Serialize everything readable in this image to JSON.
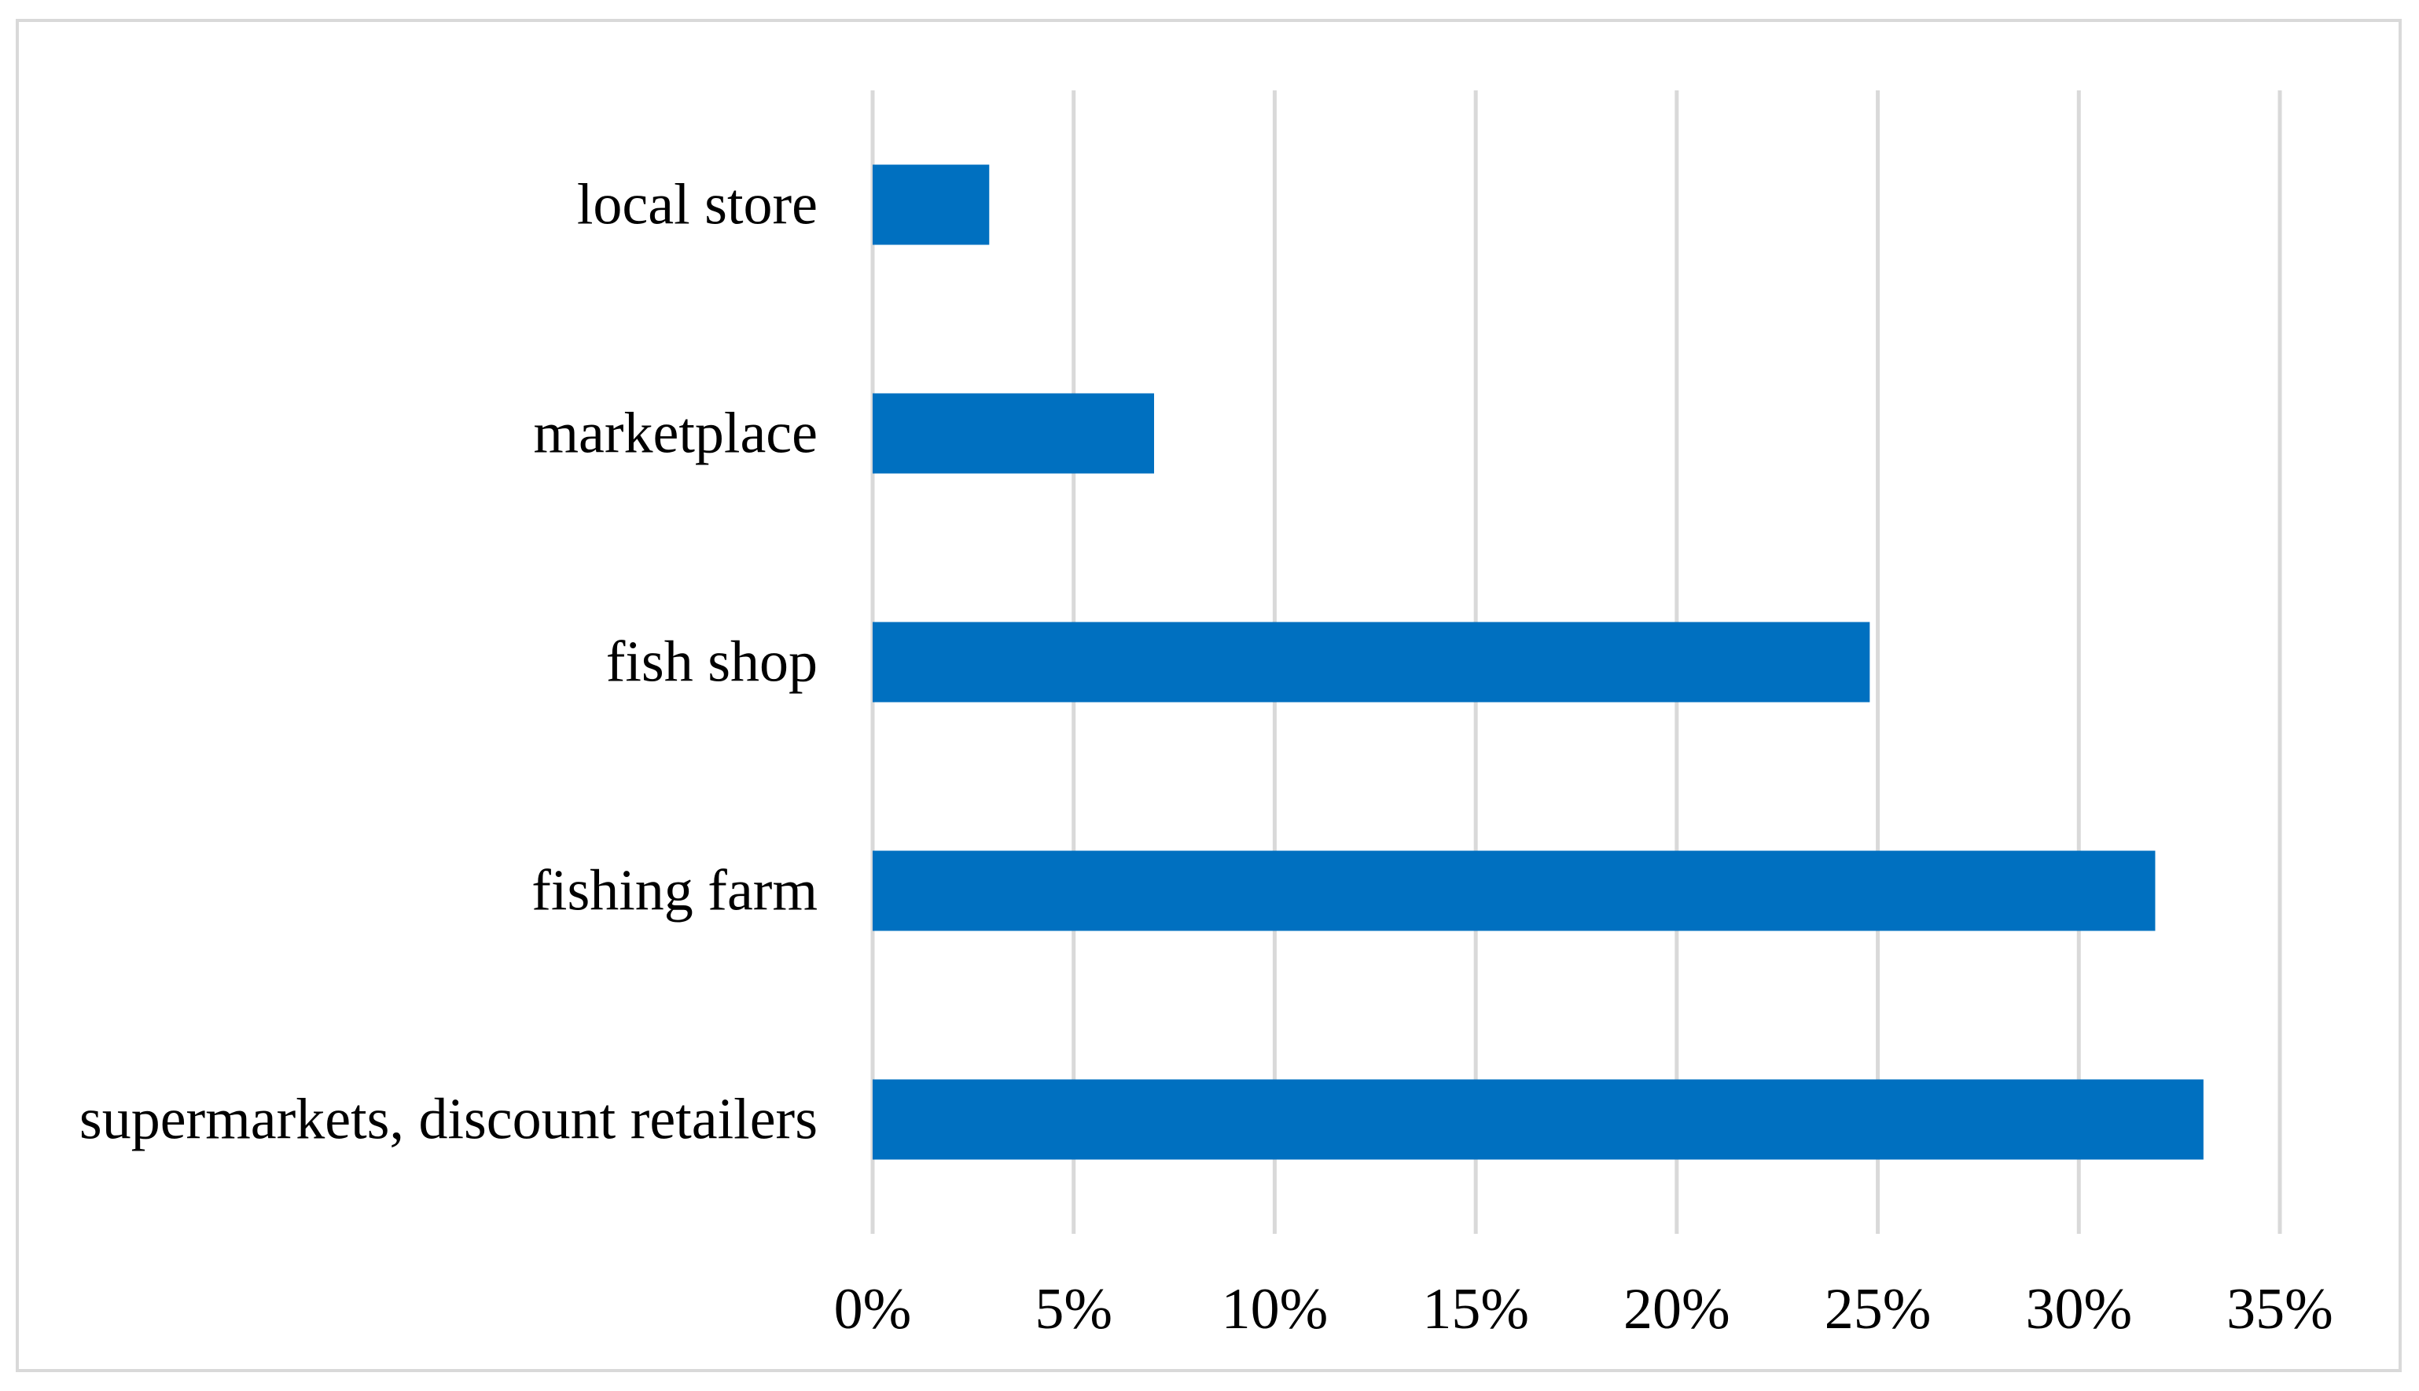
{
  "chart_data": {
    "type": "bar",
    "orientation": "horizontal",
    "categories": [
      "local store",
      "marketplace",
      "fish shop",
      "fishing farm",
      "supermarkets, discount retailers"
    ],
    "values": [
      2.9,
      7.0,
      24.8,
      31.9,
      33.1
    ],
    "unit": "%",
    "xlim": [
      0,
      35
    ],
    "xticks": [
      "0%",
      "5%",
      "10%",
      "15%",
      "20%",
      "25%",
      "30%",
      "35%"
    ],
    "grid": true,
    "legend": "none",
    "colors": {
      "bar": "#0070c0",
      "grid": "#d9d9d9",
      "frame": "#d9d9d9"
    }
  }
}
